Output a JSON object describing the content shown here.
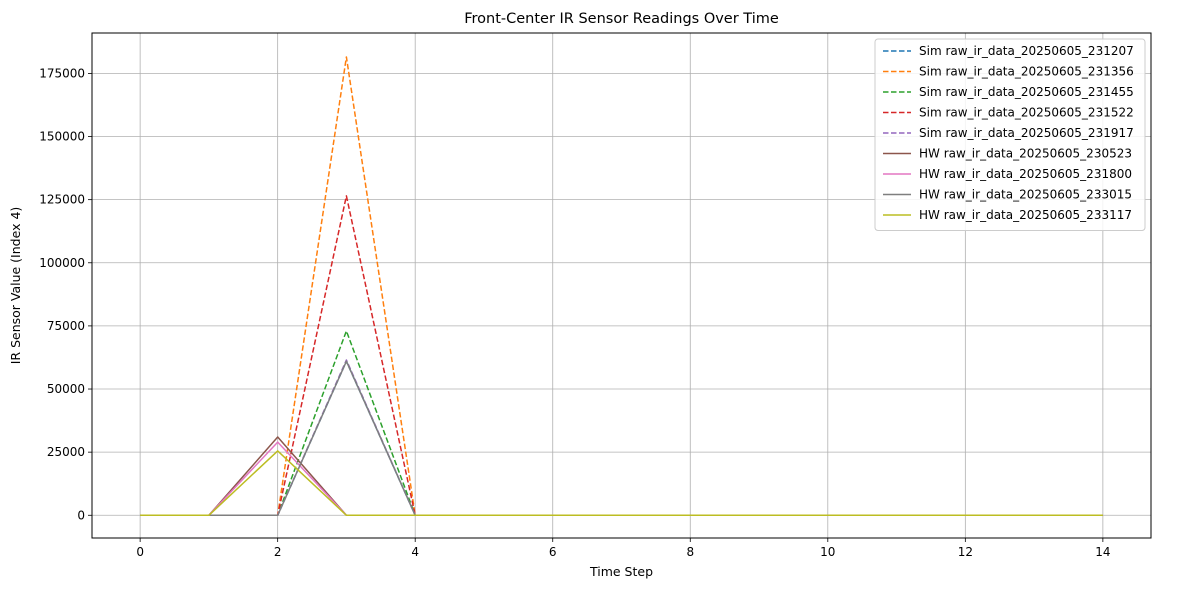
{
  "chart_data": {
    "type": "line",
    "title": "Front-Center IR Sensor Readings Over Time",
    "xlabel": "Time Step",
    "ylabel": "IR Sensor Value (Index 4)",
    "xlim": [
      -0.7,
      14.7
    ],
    "ylim": [
      -9000,
      191000
    ],
    "xticks": [
      0,
      2,
      4,
      6,
      8,
      10,
      12,
      14
    ],
    "yticks": [
      0,
      25000,
      50000,
      75000,
      100000,
      125000,
      150000,
      175000
    ],
    "grid": true,
    "legend_position": "top-right",
    "x": [
      0,
      1,
      2,
      3,
      4,
      5,
      6,
      7,
      8,
      9,
      10,
      11,
      12,
      13,
      14
    ],
    "series": [
      {
        "name": "Sim raw_ir_data_20250605_231207",
        "color": "#1f77b4",
        "style": "dashed",
        "values": [
          0,
          0,
          0,
          61000,
          0,
          0,
          0,
          0,
          0,
          0,
          0,
          0,
          0,
          0,
          0
        ]
      },
      {
        "name": "Sim raw_ir_data_20250605_231356",
        "color": "#ff7f0e",
        "style": "dashed",
        "values": [
          0,
          0,
          0,
          181500,
          0,
          0,
          0,
          0,
          0,
          0,
          0,
          0,
          0,
          0,
          0
        ]
      },
      {
        "name": "Sim raw_ir_data_20250605_231455",
        "color": "#2ca02c",
        "style": "dashed",
        "values": [
          0,
          0,
          0,
          73000,
          0,
          0,
          0,
          0,
          0,
          0,
          0,
          0,
          0,
          0,
          0
        ]
      },
      {
        "name": "Sim raw_ir_data_20250605_231522",
        "color": "#d62728",
        "style": "dashed",
        "values": [
          0,
          0,
          0,
          126500,
          0,
          0,
          0,
          0,
          0,
          0,
          0,
          0,
          0,
          0,
          0
        ]
      },
      {
        "name": "Sim raw_ir_data_20250605_231917",
        "color": "#9467bd",
        "style": "dashed",
        "values": [
          0,
          0,
          0,
          61500,
          0,
          0,
          0,
          0,
          0,
          0,
          0,
          0,
          0,
          0,
          0
        ]
      },
      {
        "name": "HW raw_ir_data_20250605_230523",
        "color": "#8c564b",
        "style": "solid",
        "values": [
          0,
          0,
          31000,
          0,
          0,
          0,
          0,
          0,
          0,
          0,
          0,
          0,
          0,
          0,
          0
        ]
      },
      {
        "name": "HW raw_ir_data_20250605_231800",
        "color": "#e377c2",
        "style": "solid",
        "values": [
          0,
          0,
          29000,
          0,
          0,
          0,
          0,
          0,
          0,
          0,
          0,
          0,
          0,
          0,
          0
        ]
      },
      {
        "name": "HW raw_ir_data_20250605_233015",
        "color": "#7f7f7f",
        "style": "solid",
        "values": [
          0,
          0,
          0,
          61000,
          0,
          0,
          0,
          0,
          0,
          0,
          0,
          0,
          0,
          0,
          0
        ]
      },
      {
        "name": "HW raw_ir_data_20250605_233117",
        "color": "#bcbd22",
        "style": "solid",
        "values": [
          0,
          0,
          25500,
          0,
          0,
          0,
          0,
          0,
          0,
          0,
          0,
          0,
          0,
          0,
          0
        ]
      }
    ]
  }
}
